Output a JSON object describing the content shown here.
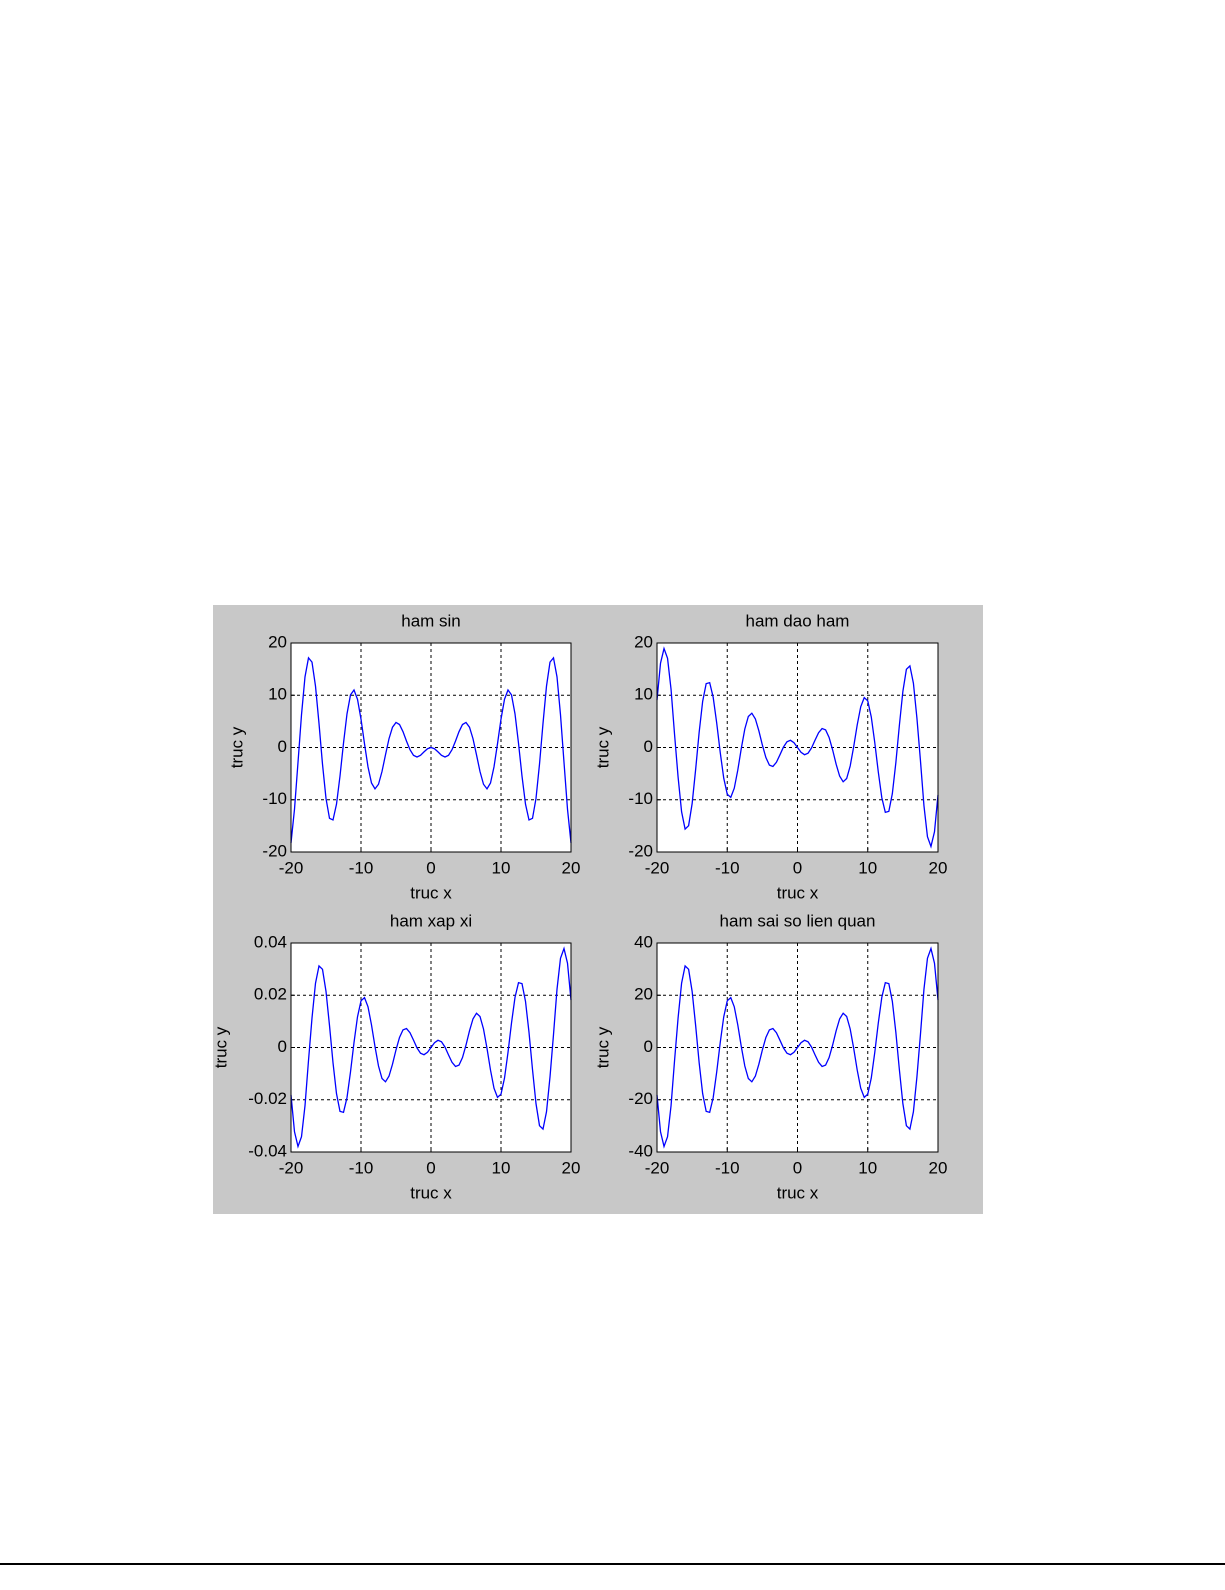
{
  "chart_data": [
    {
      "type": "line",
      "title": "ham sin",
      "xlabel": "truc x",
      "ylabel": "truc y",
      "color": "#0000ff",
      "grid": true,
      "xlim": [
        -20,
        20
      ],
      "xticks": [
        -20,
        -10,
        0,
        10,
        20
      ],
      "ylim": [
        -20,
        20
      ],
      "yticks": [
        -20,
        -10,
        0,
        10,
        20
      ],
      "x": [
        -20,
        -19.5,
        -19,
        -18.5,
        -18,
        -17.5,
        -17,
        -16.5,
        -16,
        -15.5,
        -15,
        -14.5,
        -14,
        -13.5,
        -13,
        -12.5,
        -12,
        -11.5,
        -11,
        -10.5,
        -10,
        -9.5,
        -9,
        -8.5,
        -8,
        -7.5,
        -7,
        -6.5,
        -6,
        -5.5,
        -5,
        -4.5,
        -4,
        -3.5,
        -3,
        -2.5,
        -2,
        -1.5,
        -1,
        -0.5,
        0,
        0.5,
        1,
        1.5,
        2,
        2.5,
        3,
        3.5,
        4,
        4.5,
        5,
        5.5,
        6,
        6.5,
        7,
        7.5,
        8,
        8.5,
        9,
        9.5,
        10,
        10.5,
        11,
        11.5,
        12,
        12.5,
        13,
        13.5,
        14,
        14.5,
        15,
        15.5,
        16,
        16.5,
        17,
        17.5,
        18,
        18.5,
        19,
        19.5,
        20
      ],
      "values": [
        -18.258,
        -11.807,
        -2.848,
        6.259,
        13.518,
        17.154,
        16.344,
        11.745,
        4.606,
        -3.201,
        -9.755,
        -13.556,
        -13.868,
        -10.851,
        -5.463,
        0.829,
        6.439,
        10.068,
        11,
        9.237,
        5.44,
        0.714,
        -3.709,
        -6.787,
        -7.915,
        -7.035,
        -4.599,
        -1.398,
        1.676,
        3.88,
        4.795,
        4.399,
        3.027,
        1.228,
        -0.423,
        -1.496,
        -1.819,
        -1.496,
        -0.841,
        -0.24,
        0,
        -0.24,
        -0.841,
        -1.496,
        -1.819,
        -1.496,
        -0.423,
        1.228,
        3.027,
        4.399,
        4.795,
        3.88,
        1.676,
        -1.398,
        -4.599,
        -7.035,
        -7.915,
        -6.787,
        -3.709,
        0.714,
        5.44,
        9.237,
        11,
        10.068,
        6.439,
        0.829,
        -5.463,
        -10.851,
        -13.868,
        -13.556,
        -9.755,
        -3.201,
        4.606,
        11.745,
        16.344,
        17.154,
        13.518,
        6.259,
        -2.848,
        -11.807,
        -18.258
      ]
    },
    {
      "type": "line",
      "title": "ham dao ham",
      "xlabel": "truc x",
      "ylabel": "truc y",
      "color": "#0000ff",
      "grid": true,
      "xlim": [
        -20,
        20
      ],
      "xticks": [
        -20,
        -10,
        0,
        10,
        20
      ],
      "ylim": [
        -20,
        20
      ],
      "yticks": [
        -20,
        -10,
        0,
        10,
        20
      ],
      "x": [
        -20,
        -19.5,
        -19,
        -18.5,
        -18,
        -17.5,
        -17,
        -16.5,
        -16,
        -15.5,
        -15,
        -14.5,
        -14,
        -13.5,
        -13,
        -12.5,
        -12,
        -11.5,
        -11,
        -10.5,
        -10,
        -9.5,
        -9,
        -8.5,
        -8,
        -7.5,
        -7,
        -6.5,
        -6,
        -5.5,
        -5,
        -4.5,
        -4,
        -3.5,
        -3,
        -2.5,
        -2,
        -1.5,
        -1,
        -0.5,
        0,
        0.5,
        1,
        1.5,
        2,
        2.5,
        3,
        3.5,
        4,
        4.5,
        5,
        5.5,
        6,
        6.5,
        7,
        7.5,
        8,
        8.5,
        9,
        9.5,
        10,
        10.5,
        11,
        11.5,
        12,
        12.5,
        13,
        13.5,
        14,
        14.5,
        15,
        15.5,
        16,
        16.5,
        17,
        17.5,
        18,
        18.5,
        19,
        19.5,
        20
      ],
      "values": [
        9.075,
        16.124,
        18.935,
        17.07,
        11.134,
        2.487,
        -5.64,
        -12.301,
        -15.611,
        -14.959,
        -10.745,
        -4.211,
        2.904,
        8.835,
        12.216,
        12.406,
        9.59,
        4.683,
        -0.952,
        -5.872,
        -8.935,
        -9.549,
        -7.788,
        -4.319,
        -0.175,
        3.538,
        5.934,
        6.563,
        5.482,
        3.192,
        0.46,
        -1.926,
        -3.371,
        -3.629,
        -2.829,
        -1.404,
        0.077,
        1.104,
        1.382,
        0.918,
        0,
        -0.918,
        -1.382,
        -1.104,
        -0.077,
        1.404,
        2.829,
        3.629,
        3.371,
        1.926,
        -0.46,
        -3.192,
        -5.482,
        -6.563,
        -5.934,
        -3.538,
        0.175,
        4.319,
        7.788,
        9.549,
        8.935,
        5.872,
        0.952,
        -4.683,
        -9.59,
        -12.406,
        -12.216,
        -8.835,
        -2.904,
        4.211,
        10.745,
        14.959,
        15.611,
        12.301,
        5.64,
        -2.487,
        -11.134,
        -17.07,
        -18.935,
        -16.124,
        -9.075
      ]
    },
    {
      "type": "line",
      "title": "ham xap xi",
      "xlabel": "truc x",
      "ylabel": "truc y",
      "color": "#0000ff",
      "grid": true,
      "xlim": [
        -20,
        20
      ],
      "xticks": [
        -20,
        -10,
        0,
        10,
        20
      ],
      "ylim": [
        -0.04,
        0.04
      ],
      "yticks": [
        -0.04,
        -0.02,
        0,
        0.02,
        0.04
      ],
      "x": [
        -20,
        -19.5,
        -19,
        -18.5,
        -18,
        -17.5,
        -17,
        -16.5,
        -16,
        -15.5,
        -15,
        -14.5,
        -14,
        -13.5,
        -13,
        -12.5,
        -12,
        -11.5,
        -11,
        -10.5,
        -10,
        -9.5,
        -9,
        -8.5,
        -8,
        -7.5,
        -7,
        -6.5,
        -6,
        -5.5,
        -5,
        -4.5,
        -4,
        -3.5,
        -3,
        -2.5,
        -2,
        -1.5,
        -1,
        -0.5,
        0,
        0.5,
        1,
        1.5,
        2,
        2.5,
        3,
        3.5,
        4,
        4.5,
        5,
        5.5,
        6,
        6.5,
        7,
        7.5,
        8,
        8.5,
        9,
        9.5,
        10,
        10.5,
        11,
        11.5,
        12,
        12.5,
        13,
        13.5,
        14,
        14.5,
        15,
        15.5,
        16,
        16.5,
        17,
        17.5,
        18,
        18.5,
        19,
        19.5,
        20
      ],
      "values": [
        -0.01815,
        -0.032248,
        -0.03787,
        -0.03414,
        -0.022268,
        -0.004974,
        0.01128,
        0.024602,
        0.031222,
        0.029918,
        0.02149,
        0.008422,
        -0.005808,
        -0.01767,
        -0.024432,
        -0.024812,
        -0.01918,
        -0.009366,
        0.001904,
        0.011744,
        0.01787,
        0.019098,
        0.015576,
        0.008638,
        0.00035,
        -0.007076,
        -0.011868,
        -0.013126,
        -0.010964,
        -0.006384,
        -0.00092,
        0.003852,
        0.006742,
        0.007258,
        0.005658,
        0.002808,
        -0.000154,
        -0.002208,
        -0.002764,
        -0.001836,
        0,
        0.001836,
        0.002764,
        0.002208,
        0.000154,
        -0.002808,
        -0.005658,
        -0.007258,
        -0.006742,
        -0.003852,
        0.00092,
        0.006384,
        0.010964,
        0.013126,
        0.011868,
        0.007076,
        -0.00035,
        -0.008638,
        -0.015576,
        -0.019098,
        -0.01787,
        -0.011744,
        -0.001904,
        0.009366,
        0.01918,
        0.024812,
        0.024432,
        0.01767,
        0.005808,
        -0.008422,
        -0.02149,
        -0.029918,
        -0.031222,
        -0.024602,
        -0.01128,
        0.004974,
        0.022268,
        0.03414,
        0.03787,
        0.032248,
        0.01815
      ]
    },
    {
      "type": "line",
      "title": "ham sai so lien quan",
      "xlabel": "truc x",
      "ylabel": "truc y",
      "color": "#0000ff",
      "grid": true,
      "xlim": [
        -20,
        20
      ],
      "xticks": [
        -20,
        -10,
        0,
        10,
        20
      ],
      "ylim": [
        -40,
        40
      ],
      "yticks": [
        -40,
        -20,
        0,
        20,
        40
      ],
      "x": [
        -20,
        -19.5,
        -19,
        -18.5,
        -18,
        -17.5,
        -17,
        -16.5,
        -16,
        -15.5,
        -15,
        -14.5,
        -14,
        -13.5,
        -13,
        -12.5,
        -12,
        -11.5,
        -11,
        -10.5,
        -10,
        -9.5,
        -9,
        -8.5,
        -8,
        -7.5,
        -7,
        -6.5,
        -6,
        -5.5,
        -5,
        -4.5,
        -4,
        -3.5,
        -3,
        -2.5,
        -2,
        -1.5,
        -1,
        -0.5,
        0,
        0.5,
        1,
        1.5,
        2,
        2.5,
        3,
        3.5,
        4,
        4.5,
        5,
        5.5,
        6,
        6.5,
        7,
        7.5,
        8,
        8.5,
        9,
        9.5,
        10,
        10.5,
        11,
        11.5,
        12,
        12.5,
        13,
        13.5,
        14,
        14.5,
        15,
        15.5,
        16,
        16.5,
        17,
        17.5,
        18,
        18.5,
        19,
        19.5,
        20
      ],
      "values": [
        -18.15,
        -32.248,
        -37.87,
        -34.14,
        -22.268,
        -4.974,
        11.28,
        24.602,
        31.222,
        29.918,
        21.49,
        8.422,
        -5.808,
        -17.67,
        -24.432,
        -24.812,
        -19.18,
        -9.366,
        1.904,
        11.744,
        17.87,
        19.098,
        15.576,
        8.638,
        0.35,
        -7.076,
        -11.868,
        -13.126,
        -10.964,
        -6.384,
        -0.92,
        3.852,
        6.742,
        7.258,
        5.658,
        2.808,
        -0.154,
        -2.208,
        -2.764,
        -1.836,
        0,
        1.836,
        2.764,
        2.208,
        0.154,
        -2.808,
        -5.658,
        -7.258,
        -6.742,
        -3.852,
        0.92,
        6.384,
        10.964,
        13.126,
        11.868,
        7.076,
        -0.35,
        -8.638,
        -15.576,
        -19.098,
        -17.87,
        -11.744,
        -1.904,
        9.366,
        19.18,
        24.812,
        24.432,
        17.67,
        5.808,
        -8.422,
        -21.49,
        -29.918,
        -31.222,
        -24.602,
        -11.28,
        4.974,
        22.268,
        34.14,
        37.87,
        32.248,
        18.15
      ]
    }
  ]
}
